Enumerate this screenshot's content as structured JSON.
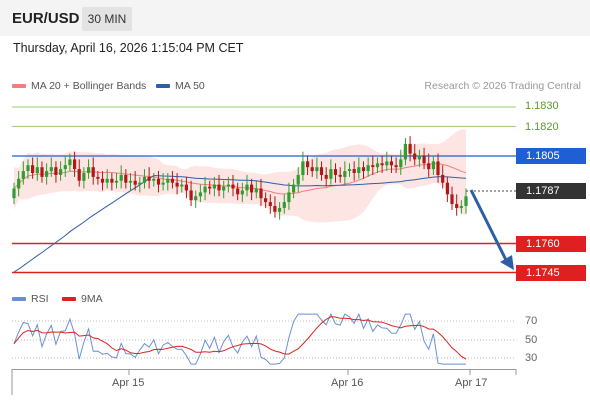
{
  "header": {
    "symbol": "EUR/USD",
    "timeframe": "30 MIN"
  },
  "datetime": "Thursday, April 16, 2026 1:15:04 PM CET",
  "legend": {
    "ma20_bollinger": {
      "label": "MA 20 + Bollinger Bands",
      "color": "#f08080"
    },
    "ma50": {
      "label": "MA 50",
      "color": "#2e5ea8"
    }
  },
  "credit": "Research © 2026 Trading Central",
  "price_levels": [
    {
      "value": "1.1830",
      "kind": "target",
      "color": "#7dbb4f"
    },
    {
      "value": "1.1820",
      "kind": "target",
      "color": "#7dbb4f"
    },
    {
      "value": "1.1805",
      "kind": "pivot",
      "color": "#1f5fd6"
    },
    {
      "value": "1.1787",
      "kind": "last",
      "color": "#333333"
    },
    {
      "value": "1.1760",
      "kind": "target",
      "color": "#e02020"
    },
    {
      "value": "1.1745",
      "kind": "target",
      "color": "#e02020"
    }
  ],
  "rsi_legend": {
    "rsi": {
      "label": "RSI",
      "color": "#6a8fd8"
    },
    "ma9": {
      "label": "9MA",
      "color": "#e02020"
    }
  },
  "rsi_levels": [
    "70",
    "50",
    "30"
  ],
  "x_labels": [
    "Apr 15",
    "Apr 16",
    "Apr 17"
  ],
  "chart_data": {
    "type": "candlestick",
    "candle_colors": {
      "up": "#2e9e2e",
      "down": "#b01818"
    },
    "ohlc": [],
    "rsi_levels": [
      70,
      50,
      30
    ]
  }
}
